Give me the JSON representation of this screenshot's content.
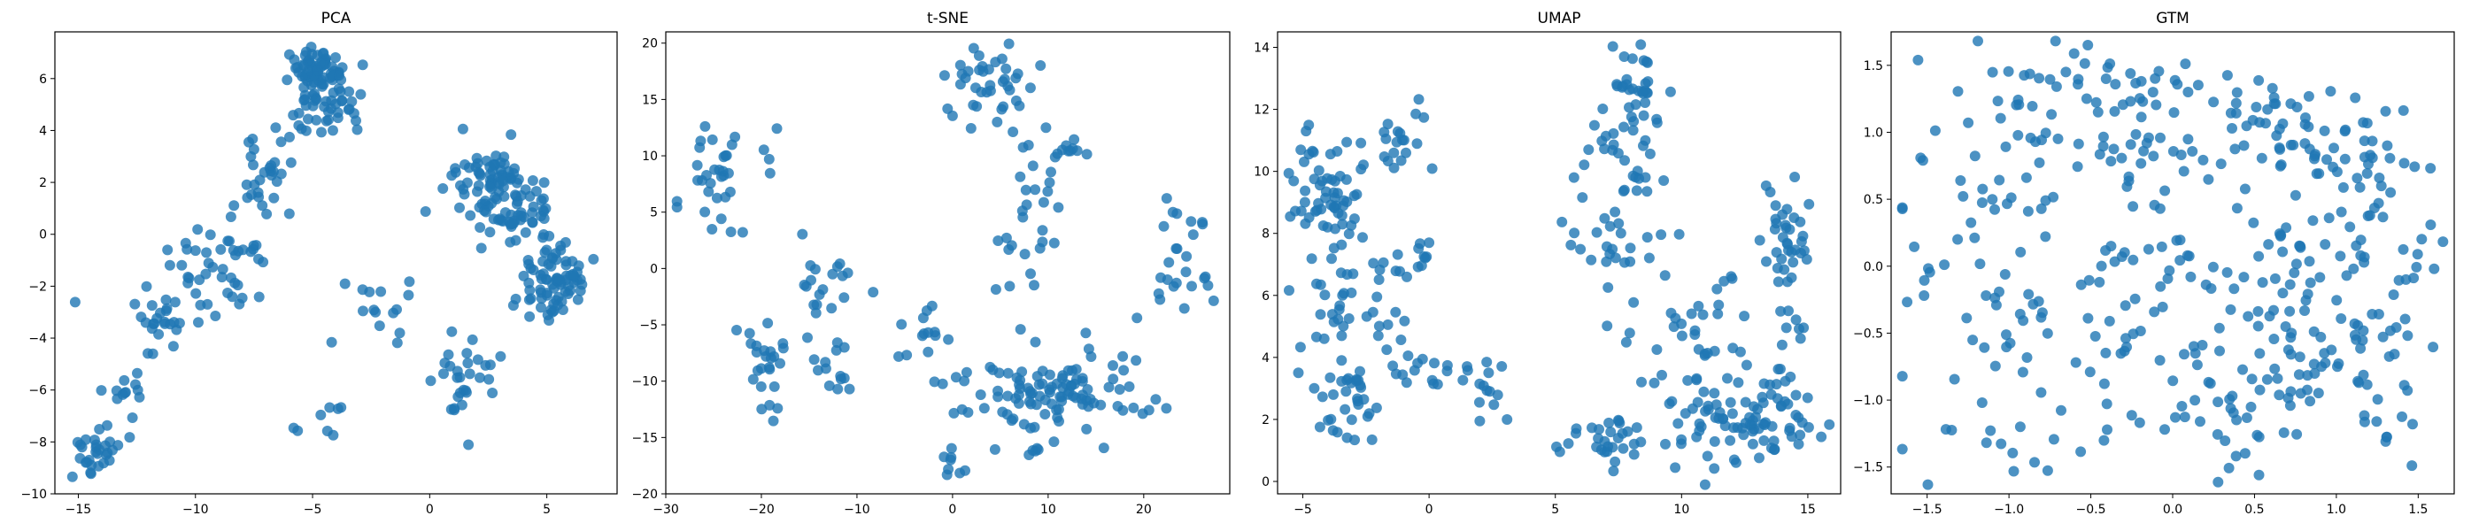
{
  "figure": {
    "point_color": "#1f77b4",
    "background": "#ffffff"
  },
  "chart_data": [
    {
      "type": "scatter",
      "title": "PCA",
      "xlim": [
        -16,
        8
      ],
      "ylim": [
        -10,
        7.8
      ],
      "xticks": [
        -15,
        -10,
        -5,
        0,
        5
      ],
      "yticks": [
        -10,
        -8,
        -6,
        -4,
        -2,
        0,
        2,
        4,
        6
      ],
      "grid": false,
      "color": "#1f77b4",
      "clusters": [
        {
          "cx": -4.8,
          "cy": 6.4,
          "sx": 0.7,
          "sy": 0.45,
          "n": 70
        },
        {
          "cx": -4.3,
          "cy": 4.8,
          "sx": 0.8,
          "sy": 0.5,
          "n": 40
        },
        {
          "cx": -7.0,
          "cy": 2.0,
          "sx": 0.8,
          "sy": 1.2,
          "n": 30
        },
        {
          "cx": -9.0,
          "cy": -1.0,
          "sx": 1.2,
          "sy": 1.2,
          "n": 45
        },
        {
          "cx": -11.5,
          "cy": -3.5,
          "sx": 0.9,
          "sy": 0.7,
          "n": 25
        },
        {
          "cx": -14.2,
          "cy": -8.4,
          "sx": 0.6,
          "sy": 0.5,
          "n": 30
        },
        {
          "cx": -13.0,
          "cy": -6.2,
          "sx": 0.7,
          "sy": 0.6,
          "n": 12
        },
        {
          "cx": 2.5,
          "cy": 2.4,
          "sx": 0.9,
          "sy": 0.6,
          "n": 55
        },
        {
          "cx": 3.6,
          "cy": 1.0,
          "sx": 0.9,
          "sy": 0.6,
          "n": 60
        },
        {
          "cx": 5.3,
          "cy": -1.7,
          "sx": 0.7,
          "sy": 0.8,
          "n": 80
        },
        {
          "cx": 1.4,
          "cy": -5.6,
          "sx": 0.7,
          "sy": 0.9,
          "n": 30
        },
        {
          "cx": -2.2,
          "cy": -3.3,
          "sx": 0.8,
          "sy": 0.8,
          "n": 15
        },
        {
          "cx": -4.5,
          "cy": -7.0,
          "sx": 0.6,
          "sy": 0.5,
          "n": 8
        }
      ]
    },
    {
      "type": "scatter",
      "title": "t-SNE",
      "xlim": [
        -30,
        29
      ],
      "ylim": [
        -20,
        21
      ],
      "xticks": [
        -30,
        -20,
        -10,
        0,
        10,
        20
      ],
      "yticks": [
        -20,
        -15,
        -10,
        -5,
        0,
        5,
        10,
        15,
        20
      ],
      "grid": false,
      "color": "#1f77b4",
      "clusters": [
        {
          "cx": -24.0,
          "cy": 8.0,
          "sx": 2.8,
          "sy": 2.2,
          "n": 35
        },
        {
          "cx": -19.5,
          "cy": -9.5,
          "sx": 1.0,
          "sy": 2.5,
          "n": 25
        },
        {
          "cx": -13.5,
          "cy": -1.5,
          "sx": 1.5,
          "sy": 2.5,
          "n": 20
        },
        {
          "cx": -13.0,
          "cy": -9.0,
          "sx": 1.5,
          "sy": 1.5,
          "n": 12
        },
        {
          "cx": 3.5,
          "cy": 16.5,
          "sx": 2.0,
          "sy": 1.8,
          "n": 40
        },
        {
          "cx": 8.0,
          "cy": 4.0,
          "sx": 2.0,
          "sy": 5.0,
          "n": 30
        },
        {
          "cx": 12.5,
          "cy": 10.5,
          "sx": 1.0,
          "sy": 0.6,
          "n": 10
        },
        {
          "cx": 11.0,
          "cy": -11.0,
          "sx": 6.0,
          "sy": 2.0,
          "n": 110
        },
        {
          "cx": 24.0,
          "cy": 1.5,
          "sx": 1.5,
          "sy": 2.5,
          "n": 25
        },
        {
          "cx": -3.0,
          "cy": -5.5,
          "sx": 2.0,
          "sy": 1.0,
          "n": 12
        },
        {
          "cx": 0.0,
          "cy": -17.0,
          "sx": 0.8,
          "sy": 0.8,
          "n": 8
        },
        {
          "cx": 8.5,
          "cy": -16.2,
          "sx": 0.8,
          "sy": 0.4,
          "n": 5
        }
      ]
    },
    {
      "type": "scatter",
      "title": "UMAP",
      "xlim": [
        -6,
        16.3
      ],
      "ylim": [
        -0.4,
        14.5
      ],
      "xticks": [
        -5,
        0,
        5,
        10,
        15
      ],
      "yticks": [
        0,
        2,
        4,
        6,
        8,
        10,
        12,
        14
      ],
      "grid": false,
      "color": "#1f77b4",
      "clusters": [
        {
          "cx": -4.0,
          "cy": 9.5,
          "sx": 0.9,
          "sy": 1.0,
          "n": 60
        },
        {
          "cx": -1.0,
          "cy": 11.0,
          "sx": 0.8,
          "sy": 0.6,
          "n": 20
        },
        {
          "cx": -3.5,
          "cy": 6.0,
          "sx": 0.8,
          "sy": 1.0,
          "n": 25
        },
        {
          "cx": -3.5,
          "cy": 2.5,
          "sx": 0.8,
          "sy": 0.8,
          "n": 35
        },
        {
          "cx": -1.6,
          "cy": 5.8,
          "sx": 0.4,
          "sy": 1.2,
          "n": 15
        },
        {
          "cx": 0.5,
          "cy": 3.5,
          "sx": 1.0,
          "sy": 0.5,
          "n": 20
        },
        {
          "cx": 2.0,
          "cy": 3.0,
          "sx": 0.5,
          "sy": 0.5,
          "n": 10
        },
        {
          "cx": -0.2,
          "cy": 7.2,
          "sx": 0.3,
          "sy": 0.5,
          "n": 8
        },
        {
          "cx": 8.0,
          "cy": 12.0,
          "sx": 0.6,
          "sy": 1.2,
          "n": 50
        },
        {
          "cx": 7.5,
          "cy": 8.5,
          "sx": 1.0,
          "sy": 1.4,
          "n": 40
        },
        {
          "cx": 14.2,
          "cy": 8.0,
          "sx": 0.5,
          "sy": 0.9,
          "n": 35
        },
        {
          "cx": 14.5,
          "cy": 5.0,
          "sx": 0.3,
          "sy": 0.6,
          "n": 8
        },
        {
          "cx": 10.5,
          "cy": 4.5,
          "sx": 1.0,
          "sy": 1.5,
          "n": 35
        },
        {
          "cx": 12.5,
          "cy": 2.0,
          "sx": 1.5,
          "sy": 0.9,
          "n": 90
        },
        {
          "cx": 7.0,
          "cy": 1.2,
          "sx": 1.2,
          "sy": 0.4,
          "n": 30
        }
      ]
    },
    {
      "type": "scatter",
      "title": "GTM",
      "xlim": [
        -1.72,
        1.72
      ],
      "ylim": [
        -1.7,
        1.75
      ],
      "xticks": [
        -1.5,
        -1.0,
        -0.5,
        0.0,
        0.5,
        1.0,
        1.5
      ],
      "yticks": [
        -1.5,
        -1.0,
        -0.5,
        0.0,
        0.5,
        1.0,
        1.5
      ],
      "grid": false,
      "color": "#1f77b4",
      "clusters": [
        {
          "cx": -1.2,
          "cy": 0.3,
          "sx": 0.25,
          "sy": 0.55,
          "n": 40
        },
        {
          "cx": -0.8,
          "cy": 1.1,
          "sx": 0.25,
          "sy": 0.25,
          "n": 25
        },
        {
          "cx": -0.4,
          "cy": 1.4,
          "sx": 0.2,
          "sy": 0.15,
          "n": 25
        },
        {
          "cx": -0.3,
          "cy": 0.8,
          "sx": 0.2,
          "sy": 0.15,
          "n": 15
        },
        {
          "cx": -0.8,
          "cy": -0.4,
          "sx": 0.3,
          "sy": 0.5,
          "n": 30
        },
        {
          "cx": -0.3,
          "cy": -0.3,
          "sx": 0.25,
          "sy": 0.4,
          "n": 25
        },
        {
          "cx": -1.0,
          "cy": -1.3,
          "sx": 0.3,
          "sy": 0.2,
          "n": 15
        },
        {
          "cx": 0.1,
          "cy": -1.0,
          "sx": 0.25,
          "sy": 0.2,
          "n": 20
        },
        {
          "cx": 0.5,
          "cy": -1.3,
          "sx": 0.2,
          "sy": 0.2,
          "n": 15
        },
        {
          "cx": 0.6,
          "cy": 1.0,
          "sx": 0.3,
          "sy": 0.2,
          "n": 50
        },
        {
          "cx": 1.1,
          "cy": 0.8,
          "sx": 0.2,
          "sy": 0.2,
          "n": 30
        },
        {
          "cx": 0.7,
          "cy": 0.2,
          "sx": 0.25,
          "sy": 0.3,
          "n": 30
        },
        {
          "cx": 0.9,
          "cy": -0.3,
          "sx": 0.35,
          "sy": 0.3,
          "n": 50
        },
        {
          "cx": 1.2,
          "cy": -0.8,
          "sx": 0.2,
          "sy": 0.3,
          "n": 30
        },
        {
          "cx": 0.7,
          "cy": -0.9,
          "sx": 0.2,
          "sy": 0.2,
          "n": 20
        },
        {
          "cx": 1.5,
          "cy": 0.0,
          "sx": 0.1,
          "sy": 0.3,
          "n": 10
        },
        {
          "cx": 0.0,
          "cy": 1.25,
          "sx": 0.15,
          "sy": 0.15,
          "n": 10
        },
        {
          "cx": -0.1,
          "cy": 0.2,
          "sx": 0.15,
          "sy": 0.3,
          "n": 15
        }
      ]
    }
  ]
}
